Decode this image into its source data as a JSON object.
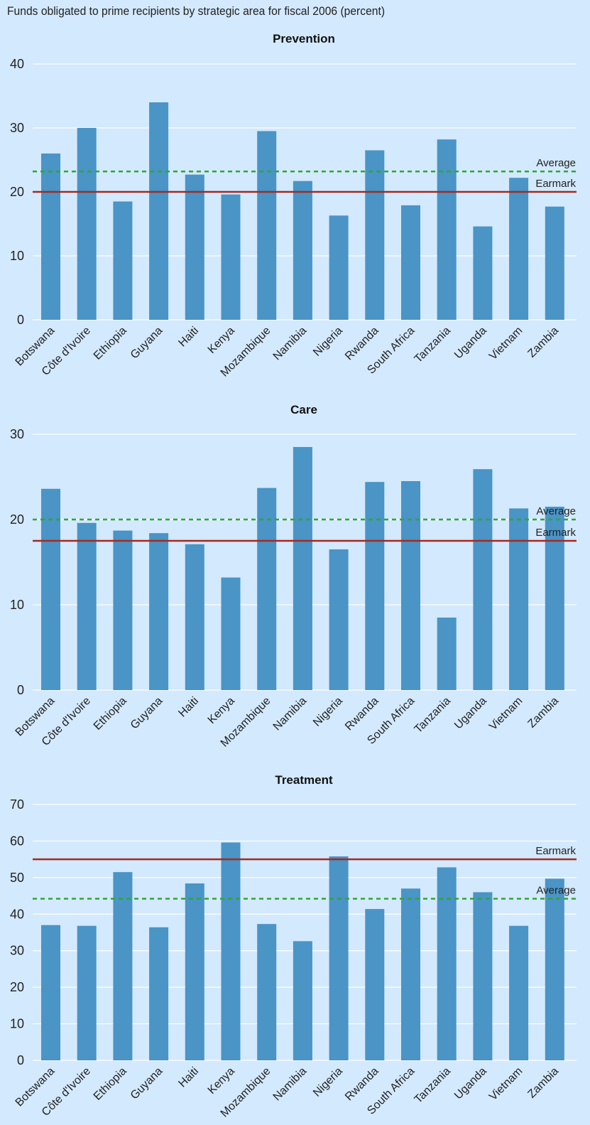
{
  "title": "Funds obligated to prime recipients by strategic area for fiscal 2006 (percent)",
  "colors": {
    "background": "#d3e9fd",
    "bar": "#4a94c6",
    "grid": "#ffffff",
    "earmark": "#a52a1e",
    "average": "#2fa82f"
  },
  "chart_data": [
    {
      "type": "bar",
      "title": "Prevention",
      "categories": [
        "Botswana",
        "Côte d'Ivoire",
        "Ethiopia",
        "Guyana",
        "Haiti",
        "Kenya",
        "Mozambique",
        "Namibia",
        "Nigeria",
        "Rwanda",
        "South Africa",
        "Tanzania",
        "Uganda",
        "Vietnam",
        "Zambia"
      ],
      "values": [
        26.0,
        30.0,
        18.5,
        34.0,
        22.7,
        19.6,
        29.5,
        21.7,
        16.3,
        26.5,
        17.9,
        28.2,
        14.6,
        22.2,
        17.7
      ],
      "ylim": [
        0,
        40
      ],
      "yticks": [
        0,
        10,
        20,
        30,
        40
      ],
      "grid": true,
      "reference_lines": [
        {
          "label": "Average",
          "value": 23.2,
          "style": "dashed",
          "color": "#2fa82f"
        },
        {
          "label": "Earmark",
          "value": 20,
          "style": "solid",
          "color": "#a52a1e"
        }
      ]
    },
    {
      "type": "bar",
      "title": "Care",
      "categories": [
        "Botswana",
        "Côte d'Ivoire",
        "Ethiopia",
        "Guyana",
        "Haiti",
        "Kenya",
        "Mozambique",
        "Namibia",
        "Nigeria",
        "Rwanda",
        "South Africa",
        "Tanzania",
        "Uganda",
        "Vietnam",
        "Zambia"
      ],
      "values": [
        23.6,
        19.6,
        18.7,
        18.4,
        17.1,
        13.2,
        23.7,
        28.5,
        16.5,
        24.4,
        24.5,
        8.5,
        25.9,
        21.3,
        21.5
      ],
      "ylim": [
        0,
        30
      ],
      "yticks": [
        0,
        10,
        20,
        30
      ],
      "grid": true,
      "reference_lines": [
        {
          "label": "Average",
          "value": 20.0,
          "style": "dashed",
          "color": "#2fa82f"
        },
        {
          "label": "Earmark",
          "value": 17.5,
          "style": "solid",
          "color": "#a52a1e"
        }
      ]
    },
    {
      "type": "bar",
      "title": "Treatment",
      "categories": [
        "Botswana",
        "Côte d'Ivoire",
        "Ethiopia",
        "Guyana",
        "Haiti",
        "Kenya",
        "Mozambique",
        "Namibia",
        "Nigeria",
        "Rwanda",
        "South Africa",
        "Tanzania",
        "Uganda",
        "Vietnam",
        "Zambia"
      ],
      "values": [
        37.0,
        36.8,
        51.5,
        36.4,
        48.4,
        59.6,
        37.3,
        32.6,
        55.8,
        41.4,
        47.0,
        52.8,
        46.0,
        36.8,
        49.7
      ],
      "ylim": [
        0,
        70
      ],
      "yticks": [
        0,
        10,
        20,
        30,
        40,
        50,
        60,
        70
      ],
      "grid": true,
      "reference_lines": [
        {
          "label": "Earmark",
          "value": 55,
          "style": "solid",
          "color": "#a52a1e"
        },
        {
          "label": "Average",
          "value": 44.2,
          "style": "dashed",
          "color": "#2fa82f"
        }
      ]
    }
  ]
}
